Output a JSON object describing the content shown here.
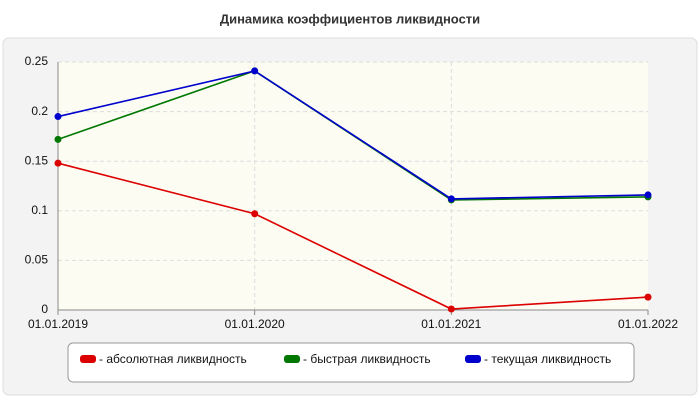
{
  "chart_data": {
    "type": "line",
    "title": "Динамика коэффициентов ликвидности",
    "categories": [
      "01.01.2019",
      "01.01.2020",
      "01.01.2021",
      "01.01.2022"
    ],
    "series": [
      {
        "name": "- абсолютная ликвидность",
        "color": "#dd0000",
        "values": [
          0.148,
          0.097,
          0.001,
          0.013
        ]
      },
      {
        "name": "- быстрая ликвидность",
        "color": "#007700",
        "values": [
          0.172,
          0.241,
          0.111,
          0.114
        ]
      },
      {
        "name": "- текущая ликвидность",
        "color": "#0000cc",
        "values": [
          0.195,
          0.241,
          0.112,
          0.116
        ]
      }
    ],
    "ylim": [
      0,
      0.25
    ],
    "yticks": [
      0,
      0.05,
      0.1,
      0.15,
      0.2,
      0.25
    ],
    "grid": true,
    "legend": "bottom"
  }
}
